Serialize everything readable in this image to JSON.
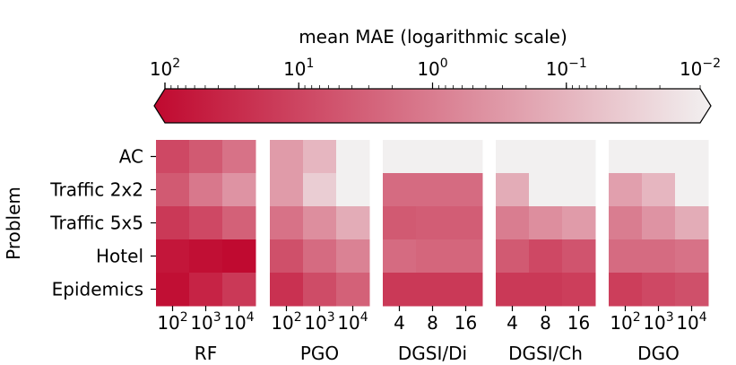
{
  "chart_data": {
    "type": "heatmap",
    "colorbar": {
      "label": "mean MAE (logarithmic scale)",
      "scale": "log",
      "range": [
        100,
        0.01
      ],
      "ticks": [
        {
          "base": "10",
          "exp": "2",
          "value": 100
        },
        {
          "base": "10",
          "exp": "1",
          "value": 10
        },
        {
          "base": "10",
          "exp": "0",
          "value": 1
        },
        {
          "base": "10",
          "exp": "−1",
          "value": 0.1
        },
        {
          "base": "10",
          "exp": "−2",
          "value": 0.01
        }
      ],
      "colormap": {
        "high": "#c0092f",
        "low": "#f2f0f0"
      }
    },
    "ylabel": "Problem",
    "rows": [
      "AC",
      "Traffic 2x2",
      "Traffic 5x5",
      "Hotel",
      "Epidemics"
    ],
    "panels": [
      {
        "label": "RF",
        "columns": [
          {
            "text": "10",
            "sup": "2"
          },
          {
            "text": "10",
            "sup": "3"
          },
          {
            "text": "10",
            "sup": "4"
          }
        ],
        "values": [
          [
            8,
            4,
            1.5
          ],
          [
            4,
            1.2,
            0.4
          ],
          [
            15,
            8,
            3
          ],
          [
            60,
            80,
            95
          ],
          [
            80,
            35,
            15
          ]
        ]
      },
      {
        "label": "PGO",
        "columns": [
          {
            "text": "10",
            "sup": "2"
          },
          {
            "text": "10",
            "sup": "3"
          },
          {
            "text": "10",
            "sup": "4"
          }
        ],
        "values": [
          [
            0.3,
            0.1,
            0.01
          ],
          [
            0.3,
            0.04,
            0.01
          ],
          [
            1.5,
            0.5,
            0.15
          ],
          [
            6,
            2,
            0.8
          ],
          [
            20,
            7,
            3
          ]
        ]
      },
      {
        "label": "DGSI/Di",
        "columns": [
          {
            "text": "4",
            "sup": ""
          },
          {
            "text": "8",
            "sup": ""
          },
          {
            "text": "16",
            "sup": ""
          }
        ],
        "values": [
          [
            0.01,
            0.01,
            0.01
          ],
          [
            2,
            2,
            2
          ],
          [
            4,
            3.5,
            3.5
          ],
          [
            2,
            2.5,
            2.5
          ],
          [
            15,
            15,
            15
          ]
        ]
      },
      {
        "label": "DGSI/Ch",
        "columns": [
          {
            "text": "4",
            "sup": ""
          },
          {
            "text": "8",
            "sup": ""
          },
          {
            "text": "16",
            "sup": ""
          }
        ],
        "values": [
          [
            0.01,
            0.01,
            0.01
          ],
          [
            0.15,
            0.01,
            0.01
          ],
          [
            1,
            0.5,
            0.3
          ],
          [
            4,
            8,
            5
          ],
          [
            15,
            15,
            12
          ]
        ]
      },
      {
        "label": "DGO",
        "columns": [
          {
            "text": "10",
            "sup": "2"
          },
          {
            "text": "10",
            "sup": "3"
          },
          {
            "text": "10",
            "sup": "4"
          }
        ],
        "values": [
          [
            0.01,
            0.01,
            0.01
          ],
          [
            0.25,
            0.1,
            0.01
          ],
          [
            1,
            0.4,
            0.15
          ],
          [
            2,
            2,
            1.5
          ],
          [
            12,
            8,
            6
          ]
        ]
      }
    ]
  }
}
